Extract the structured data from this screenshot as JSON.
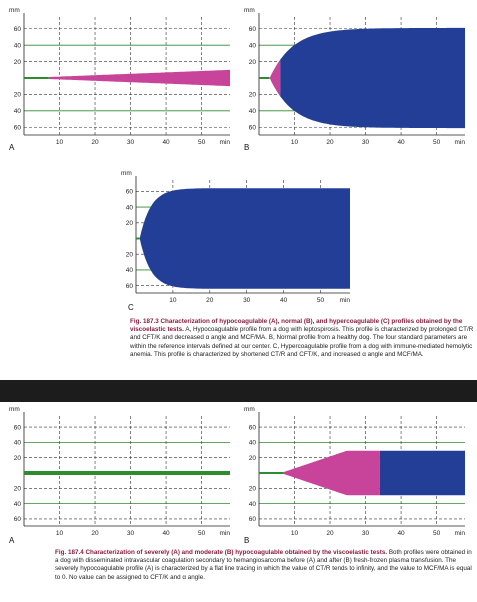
{
  "fig187_3": {
    "caption_title": "Fig. 187.3 Characterization of hypocoagulable (A), normal (B), and hypercoagulable (C) profiles obtained by the viscoelastic tests.",
    "caption_body": "A, Hypocoagulable profile from a dog with leptospirosis. This profile is characterized by prolonged CT/R and CFT/K and decreased α angle and MCF/MA. B, Normal profile from a healthy dog. The four standard parameters are within the reference intervals defined at our center. C, Hypercoagulable profile from a dog with immune-mediated hemolytic anemia. This profile is characterized by shortened CT/R and CFT/K, and increased α angle and MCF/MA.",
    "panels": [
      {
        "label": "A"
      },
      {
        "label": "B"
      },
      {
        "label": "C"
      }
    ]
  },
  "fig187_4": {
    "caption_title": "Fig. 187.4 Characterization of severely (A) and moderate (B) hypocoagulable obtained by the viscoelastic tests.",
    "caption_body": "Both profiles were obtained in a dog with disseminated intravascular coagulation secondary to hemangiosarcoma before (A) and after (B) fresh-frozen plasma transfusion. The severely hypocoagulable profile (A) is characterized by a flat line tracing in which the value of CT/R tends to infinity, and the value to MCF/MA is equal to 0. No value can be assigned to CFT/K and α angle.",
    "panels": [
      {
        "label": "A"
      },
      {
        "label": "B"
      }
    ]
  },
  "axis": {
    "y_unit": "mm",
    "x_unit": "min",
    "y_ticks": [
      "60",
      "40",
      "20",
      "20",
      "40",
      "60"
    ],
    "x_ticks": [
      "10",
      "20",
      "30",
      "40",
      "50"
    ]
  },
  "colors": {
    "magenta": "#c8449a",
    "blue": "#233e96",
    "green": "#2e8b2e",
    "title": "#8a1c3c"
  }
}
